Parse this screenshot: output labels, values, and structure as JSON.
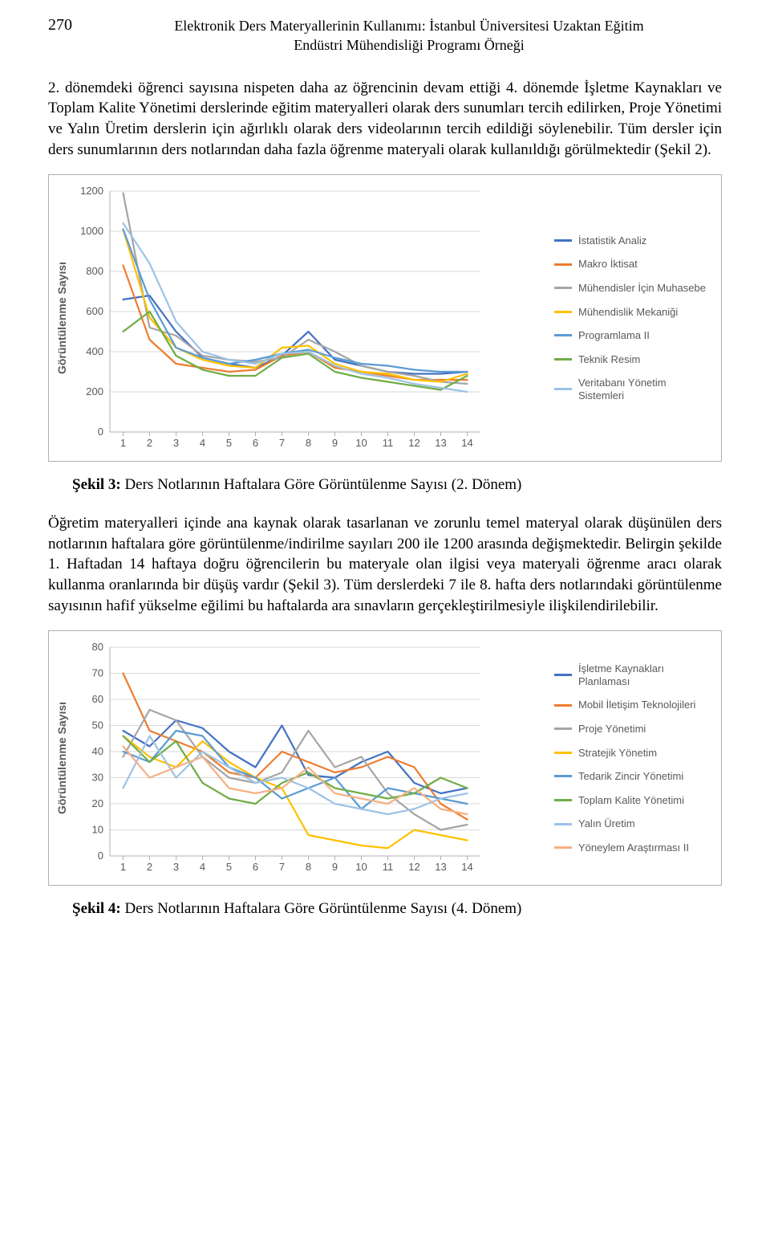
{
  "page_number": "270",
  "running_head_line1": "Elektronik Ders Materyallerinin Kullanımı: İstanbul Üniversitesi Uzaktan Eğitim",
  "running_head_line2": "Endüstri Mühendisliği Programı Örneği",
  "paragraph_1": "2. dönemdeki öğrenci sayısına nispeten daha az öğrencinin devam ettiği 4. dönemde İşletme Kaynakları ve Toplam Kalite Yönetimi derslerinde eğitim materyalleri olarak ders sunumları tercih edilirken, Proje Yönetimi ve Yalın Üretim derslerin için ağırlıklı olarak ders videolarının tercih edildiği söylenebilir. Tüm dersler için ders sunumlarının ders notlarından daha fazla öğrenme materyali olarak kullanıldığı görülmektedir (Şekil 2).",
  "paragraph_2": "Öğretim materyalleri içinde ana kaynak olarak tasarlanan ve zorunlu temel materyal olarak düşünülen ders notlarının haftalara göre görüntülenme/indirilme sayıları 200 ile 1200 arasında değişmektedir. Belirgin şekilde 1. Haftadan 14 haftaya doğru öğrencilerin bu materyale olan ilgisi veya materyali öğrenme aracı olarak kullanma oranlarında bir düşüş vardır (Şekil 3). Tüm derslerdeki 7 ile 8. hafta ders notlarındaki görüntülenme sayısının hafif yükselme eğilimi bu haftalarda ara sınavların gerçekleştirilmesiyle ilişkilendirilebilir.",
  "caption_3_bold": "Şekil 3:",
  "caption_3_rest": " Ders Notlarının Haftalara Göre Görüntülenme Sayısı (2. Dönem)",
  "caption_4_bold": "Şekil 4:",
  "caption_4_rest": " Ders Notlarının Haftalara Göre Görüntülenme Sayısı (4. Dönem)",
  "chart3": {
    "type": "line",
    "ylabel": "Görüntülenme Sayısı",
    "x_categories": [
      "1",
      "2",
      "3",
      "4",
      "5",
      "6",
      "7",
      "8",
      "9",
      "10",
      "11",
      "12",
      "13",
      "14"
    ],
    "ylim": [
      0,
      1200
    ],
    "ytick_step": 200,
    "axis_color": "#b0b0b0",
    "grid_color": "#d9d9d9",
    "tick_font_size": 13,
    "tick_color": "#595959",
    "legend_font_size": 13,
    "line_width": 2.2,
    "background_color": "#ffffff",
    "series": [
      {
        "label": "İstatistik Analiz",
        "color": "#4472c4",
        "values": [
          660,
          680,
          500,
          370,
          340,
          320,
          380,
          500,
          360,
          330,
          300,
          290,
          290,
          300
        ]
      },
      {
        "label": "Makro İktisat",
        "color": "#ed7d31",
        "values": [
          830,
          460,
          340,
          320,
          300,
          310,
          380,
          400,
          320,
          300,
          280,
          260,
          260,
          260
        ]
      },
      {
        "label": "Mühendisler İçin Muhasebe",
        "color": "#a5a5a5",
        "values": [
          1190,
          520,
          480,
          380,
          360,
          350,
          370,
          460,
          400,
          330,
          300,
          280,
          250,
          240
        ]
      },
      {
        "label": "Mühendislik Mekaniği",
        "color": "#ffc000",
        "values": [
          1010,
          570,
          420,
          360,
          330,
          320,
          420,
          430,
          340,
          300,
          290,
          260,
          250,
          290
        ]
      },
      {
        "label": "Programlama II",
        "color": "#5b9bd5",
        "values": [
          1010,
          660,
          420,
          370,
          340,
          360,
          390,
          410,
          370,
          340,
          330,
          310,
          300,
          300
        ]
      },
      {
        "label": "Teknik Resim",
        "color": "#70ad47",
        "values": [
          500,
          600,
          380,
          310,
          280,
          280,
          370,
          390,
          300,
          270,
          250,
          230,
          210,
          280
        ]
      },
      {
        "label": "Veritabanı Yönetim Sistemleri",
        "color": "#9dc3e6",
        "values": [
          1040,
          840,
          550,
          400,
          360,
          340,
          390,
          400,
          330,
          290,
          270,
          240,
          220,
          200
        ]
      }
    ]
  },
  "chart4": {
    "type": "line",
    "ylabel": "Görüntülenme Sayısı",
    "x_categories": [
      "1",
      "2",
      "3",
      "4",
      "5",
      "6",
      "7",
      "8",
      "9",
      "10",
      "11",
      "12",
      "13",
      "14"
    ],
    "ylim": [
      0,
      80
    ],
    "ytick_step": 10,
    "axis_color": "#b0b0b0",
    "grid_color": "#d9d9d9",
    "tick_font_size": 13,
    "tick_color": "#595959",
    "legend_font_size": 13,
    "line_width": 2.2,
    "background_color": "#ffffff",
    "series": [
      {
        "label": "İşletme Kaynakları Planlaması",
        "color": "#4472c4",
        "values": [
          48,
          42,
          52,
          49,
          40,
          34,
          50,
          31,
          30,
          36,
          40,
          28,
          24,
          26
        ]
      },
      {
        "label": "Mobil İletişim Teknolojileri",
        "color": "#ed7d31",
        "values": [
          70,
          48,
          44,
          40,
          32,
          30,
          40,
          36,
          32,
          34,
          38,
          34,
          20,
          14
        ]
      },
      {
        "label": "Proje Yönetimi",
        "color": "#a5a5a5",
        "values": [
          38,
          56,
          52,
          38,
          30,
          28,
          32,
          48,
          34,
          38,
          24,
          16,
          10,
          12
        ]
      },
      {
        "label": "Stratejik Yönetim",
        "color": "#ffc000",
        "values": [
          46,
          38,
          34,
          44,
          36,
          30,
          26,
          8,
          6,
          4,
          3,
          10,
          8,
          6
        ]
      },
      {
        "label": "Tedarik Zincir Yönetimi",
        "color": "#5b9bd5",
        "values": [
          40,
          36,
          48,
          46,
          34,
          30,
          22,
          26,
          30,
          18,
          26,
          24,
          22,
          20
        ]
      },
      {
        "label": "Toplam Kalite Yönetimi",
        "color": "#70ad47",
        "values": [
          46,
          36,
          44,
          28,
          22,
          20,
          28,
          32,
          26,
          24,
          22,
          24,
          30,
          26
        ]
      },
      {
        "label": "Yalın Üretim",
        "color": "#9dc3e6",
        "values": [
          26,
          46,
          30,
          40,
          34,
          28,
          30,
          26,
          20,
          18,
          16,
          18,
          22,
          24
        ]
      },
      {
        "label": "Yöneylem Araştırması II",
        "color": "#f4b183",
        "values": [
          42,
          30,
          34,
          38,
          26,
          24,
          26,
          34,
          24,
          22,
          20,
          26,
          18,
          16
        ]
      }
    ]
  }
}
